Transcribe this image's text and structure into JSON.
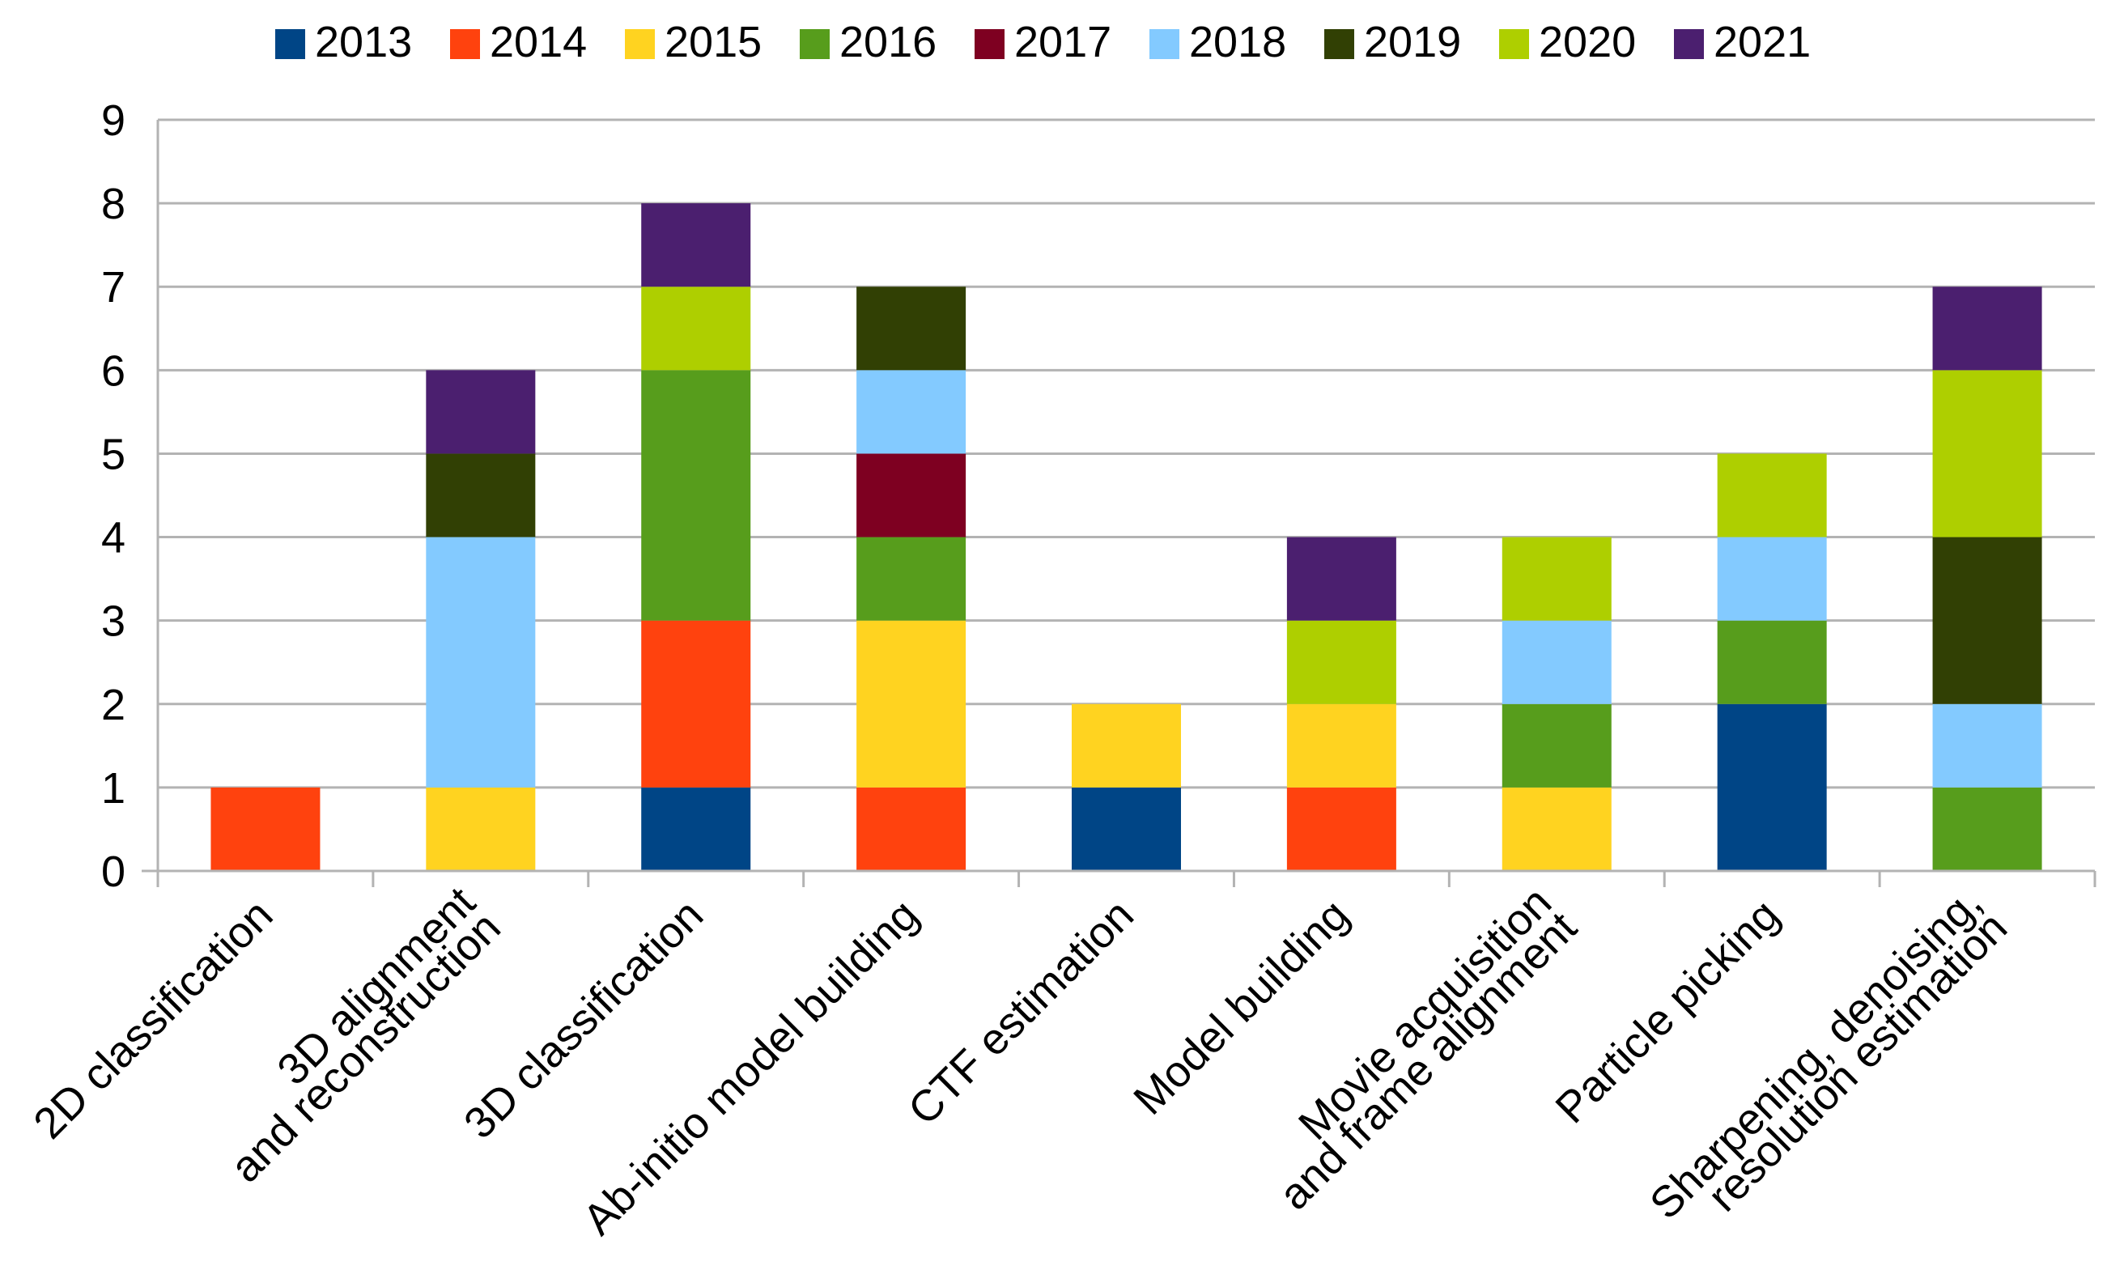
{
  "chart_data": {
    "type": "bar",
    "stacked": true,
    "title": "",
    "xlabel": "",
    "ylabel": "",
    "ylim": [
      0,
      9
    ],
    "yticks": [
      "0",
      "1",
      "2",
      "3",
      "4",
      "5",
      "6",
      "7",
      "8",
      "9"
    ],
    "grid": true,
    "legend_position": "top",
    "categories": [
      [
        "2D classification"
      ],
      [
        "3D alignment",
        "and reconstruction"
      ],
      [
        "3D classification"
      ],
      [
        "Ab-initio model building"
      ],
      [
        "CTF estimation"
      ],
      [
        "Model building"
      ],
      [
        "Movie acquisition",
        "and frame alignment"
      ],
      [
        "Particle picking"
      ],
      [
        "Sharpening, denoising,",
        "resolution estimation"
      ]
    ],
    "series": [
      {
        "name": "2013",
        "color": "#004586",
        "values": [
          0,
          0,
          1,
          0,
          1,
          0,
          0,
          2,
          0
        ]
      },
      {
        "name": "2014",
        "color": "#ff420e",
        "values": [
          1,
          0,
          2,
          1,
          0,
          1,
          0,
          0,
          0
        ]
      },
      {
        "name": "2015",
        "color": "#ffd320",
        "values": [
          0,
          1,
          0,
          2,
          1,
          1,
          1,
          0,
          0
        ]
      },
      {
        "name": "2016",
        "color": "#579d1c",
        "values": [
          0,
          0,
          3,
          1,
          0,
          0,
          1,
          1,
          1
        ]
      },
      {
        "name": "2017",
        "color": "#7e0021",
        "values": [
          0,
          0,
          0,
          1,
          0,
          0,
          0,
          0,
          0
        ]
      },
      {
        "name": "2018",
        "color": "#83caff",
        "values": [
          0,
          3,
          0,
          1,
          0,
          0,
          1,
          1,
          1
        ]
      },
      {
        "name": "2019",
        "color": "#314004",
        "values": [
          0,
          1,
          0,
          1,
          0,
          0,
          0,
          0,
          2
        ]
      },
      {
        "name": "2020",
        "color": "#aecf00",
        "values": [
          0,
          0,
          1,
          0,
          0,
          1,
          1,
          1,
          2
        ]
      },
      {
        "name": "2021",
        "color": "#4b1f6f",
        "values": [
          0,
          1,
          1,
          0,
          0,
          1,
          0,
          0,
          1
        ]
      }
    ]
  }
}
